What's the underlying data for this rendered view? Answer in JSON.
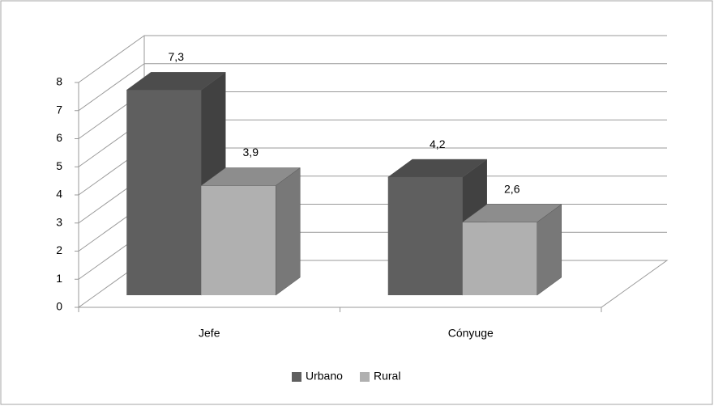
{
  "chart_data": {
    "type": "bar3d",
    "categories": [
      "Jefe",
      "Cónyuge"
    ],
    "series": [
      {
        "name": "Urbano",
        "color": "#5f5f5f",
        "values": [
          7.3,
          4.2
        ],
        "value_labels": [
          "7,3",
          "4,2"
        ]
      },
      {
        "name": "Rural",
        "color": "#b0b0b0",
        "values": [
          3.9,
          2.6
        ],
        "value_labels": [
          "3,9",
          "2,6"
        ]
      }
    ],
    "ylim": [
      0,
      8
    ],
    "yticks": [
      0,
      1,
      2,
      3,
      4,
      5,
      6,
      7,
      8
    ],
    "grid": true,
    "legend": "bottom"
  }
}
